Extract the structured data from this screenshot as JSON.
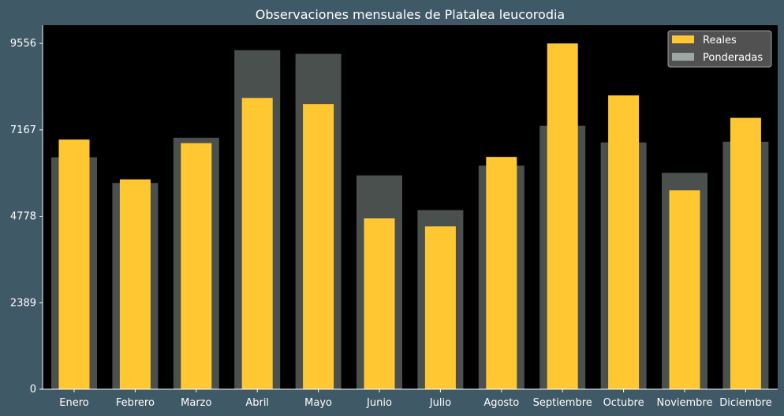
{
  "chart_data": {
    "type": "bar",
    "title": "Observaciones mensuales de Platalea leucorodia",
    "xlabel": "",
    "ylabel": "",
    "categories": [
      "Enero",
      "Febrero",
      "Marzo",
      "Abril",
      "Mayo",
      "Junio",
      "Julio",
      "Agosto",
      "Septiembre",
      "Octubre",
      "Noviembre",
      "Diciembre"
    ],
    "series": [
      {
        "name": "Reales",
        "values": [
          6900,
          5800,
          6800,
          8050,
          7880,
          4720,
          4500,
          6420,
          9556,
          8120,
          5500,
          7500
        ]
      },
      {
        "name": "Ponderadas",
        "values": [
          6410,
          5700,
          6950,
          9370,
          9270,
          5910,
          4950,
          6180,
          7280,
          6820,
          5980,
          6840
        ]
      }
    ],
    "ylim": [
      0,
      10060
    ],
    "yticks": [
      0,
      2389,
      4778,
      7167,
      9556
    ],
    "grid": false,
    "legend_position": "top-right",
    "colors": {
      "Reales": "#ffc832",
      "Ponderadas": "#a5b1ad",
      "Ponderadas_opacity": 0.45,
      "plot_background": "#000000",
      "figure_background": "#3f5966",
      "text": "#ffffff"
    }
  }
}
